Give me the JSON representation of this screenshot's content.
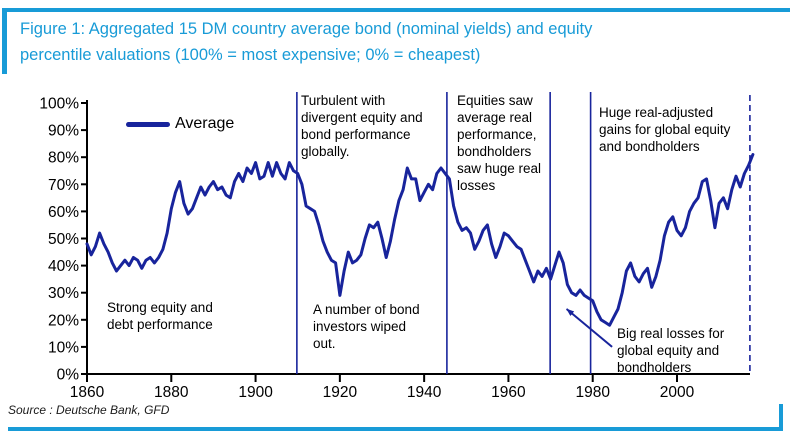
{
  "figure": {
    "title_line1": "Figure 1: Aggregated 15 DM country average bond (nominal yields) and equity",
    "title_line2": "percentile valuations (100% = most expensive; 0% = cheapest)",
    "source": "Source : Deutsche Bank, GFD",
    "accent_color": "#189bd7",
    "line_color": "#18249c"
  },
  "chart_data": {
    "type": "line",
    "title": "Figure 1: Aggregated 15 DM country average bond (nominal yields) and equity percentile valuations (100% = most expensive; 0% = cheapest)",
    "xlabel": "",
    "ylabel": "",
    "grid": false,
    "legend_label": "Average",
    "legend_position": "top-left-inside",
    "xlim": [
      1860,
      2018
    ],
    "ylim": [
      0,
      100
    ],
    "x_ticks": [
      1860,
      1880,
      1900,
      1920,
      1940,
      1960,
      1980,
      2000
    ],
    "y_tick_labels": [
      "0%",
      "10%",
      "20%",
      "30%",
      "40%",
      "50%",
      "60%",
      "70%",
      "80%",
      "90%",
      "100%"
    ],
    "dividers": [
      {
        "year": 1909.8,
        "style": "solid"
      },
      {
        "year": 1945.4,
        "style": "solid"
      },
      {
        "year": 1969.9,
        "style": "solid"
      },
      {
        "year": 1979.5,
        "style": "solid"
      },
      {
        "year": 2017.3,
        "style": "dashed"
      }
    ],
    "arrow": {
      "from_year": 1984.6,
      "from_value": 10,
      "to_year": 1973.8,
      "to_value": 24
    },
    "annotations": {
      "strong_equity": "Strong equity and\ndebt performance",
      "turbulent": "Turbulent with\ndivergent equity and\nbond performance\nglobally.",
      "bond_wipeout": "A number of bond\ninvestors wiped\nout.",
      "equities_avg": "Equities saw\naverage real\nperformance,\nbondholders\nsaw huge real\nlosses",
      "huge_gains": "Huge real-adjusted\ngains for global equity\nand bondholders",
      "big_losses": "Big real losses for\nglobal equity and\nbondholders"
    },
    "series": [
      {
        "name": "Average",
        "points": [
          [
            1860,
            48
          ],
          [
            1861,
            44
          ],
          [
            1862,
            47
          ],
          [
            1863,
            52
          ],
          [
            1864,
            48
          ],
          [
            1865,
            45
          ],
          [
            1866,
            41
          ],
          [
            1867,
            38
          ],
          [
            1868,
            40
          ],
          [
            1869,
            42
          ],
          [
            1870,
            40
          ],
          [
            1871,
            43
          ],
          [
            1872,
            42
          ],
          [
            1873,
            39
          ],
          [
            1874,
            42
          ],
          [
            1875,
            43
          ],
          [
            1876,
            41
          ],
          [
            1877,
            43
          ],
          [
            1878,
            46
          ],
          [
            1879,
            52
          ],
          [
            1880,
            61
          ],
          [
            1881,
            67
          ],
          [
            1882,
            71
          ],
          [
            1883,
            63
          ],
          [
            1884,
            59
          ],
          [
            1885,
            61
          ],
          [
            1886,
            65
          ],
          [
            1887,
            69
          ],
          [
            1888,
            66
          ],
          [
            1889,
            69
          ],
          [
            1890,
            71
          ],
          [
            1891,
            68
          ],
          [
            1892,
            69
          ],
          [
            1893,
            66
          ],
          [
            1894,
            65
          ],
          [
            1895,
            71
          ],
          [
            1896,
            74
          ],
          [
            1897,
            71
          ],
          [
            1898,
            76
          ],
          [
            1899,
            74
          ],
          [
            1900,
            78
          ],
          [
            1901,
            72
          ],
          [
            1902,
            73
          ],
          [
            1903,
            78
          ],
          [
            1904,
            73
          ],
          [
            1905,
            78
          ],
          [
            1906,
            74
          ],
          [
            1907,
            72
          ],
          [
            1908,
            78
          ],
          [
            1909,
            75
          ],
          [
            1910,
            74
          ],
          [
            1911,
            70
          ],
          [
            1912,
            62
          ],
          [
            1913,
            61
          ],
          [
            1914,
            60
          ],
          [
            1915,
            55
          ],
          [
            1916,
            49
          ],
          [
            1917,
            45
          ],
          [
            1918,
            42
          ],
          [
            1919,
            41
          ],
          [
            1920,
            29
          ],
          [
            1921,
            38
          ],
          [
            1922,
            45
          ],
          [
            1923,
            41
          ],
          [
            1924,
            42
          ],
          [
            1925,
            44
          ],
          [
            1926,
            50
          ],
          [
            1927,
            55
          ],
          [
            1928,
            54
          ],
          [
            1929,
            56
          ],
          [
            1930,
            50
          ],
          [
            1931,
            43
          ],
          [
            1932,
            49
          ],
          [
            1933,
            57
          ],
          [
            1934,
            64
          ],
          [
            1935,
            68
          ],
          [
            1936,
            76
          ],
          [
            1937,
            72
          ],
          [
            1938,
            72
          ],
          [
            1939,
            64
          ],
          [
            1940,
            67
          ],
          [
            1941,
            70
          ],
          [
            1942,
            68
          ],
          [
            1943,
            74
          ],
          [
            1944,
            76
          ],
          [
            1945,
            74
          ],
          [
            1946,
            72
          ],
          [
            1947,
            62
          ],
          [
            1948,
            56
          ],
          [
            1949,
            53
          ],
          [
            1950,
            54
          ],
          [
            1951,
            52
          ],
          [
            1952,
            46
          ],
          [
            1953,
            49
          ],
          [
            1954,
            53
          ],
          [
            1955,
            55
          ],
          [
            1956,
            48
          ],
          [
            1957,
            43
          ],
          [
            1958,
            47
          ],
          [
            1959,
            52
          ],
          [
            1960,
            51
          ],
          [
            1961,
            49
          ],
          [
            1962,
            47
          ],
          [
            1963,
            46
          ],
          [
            1964,
            42
          ],
          [
            1965,
            38
          ],
          [
            1966,
            34
          ],
          [
            1967,
            38
          ],
          [
            1968,
            36
          ],
          [
            1969,
            39
          ],
          [
            1970,
            35
          ],
          [
            1971,
            40
          ],
          [
            1972,
            45
          ],
          [
            1973,
            41
          ],
          [
            1974,
            33
          ],
          [
            1975,
            30
          ],
          [
            1976,
            29
          ],
          [
            1977,
            31
          ],
          [
            1978,
            29
          ],
          [
            1979,
            28
          ],
          [
            1980,
            27
          ],
          [
            1981,
            23
          ],
          [
            1982,
            20
          ],
          [
            1983,
            19
          ],
          [
            1984,
            18
          ],
          [
            1985,
            21
          ],
          [
            1986,
            24
          ],
          [
            1987,
            30
          ],
          [
            1988,
            38
          ],
          [
            1989,
            41
          ],
          [
            1990,
            36
          ],
          [
            1991,
            34
          ],
          [
            1992,
            37
          ],
          [
            1993,
            39
          ],
          [
            1994,
            32
          ],
          [
            1995,
            36
          ],
          [
            1996,
            42
          ],
          [
            1997,
            51
          ],
          [
            1998,
            56
          ],
          [
            1999,
            58
          ],
          [
            2000,
            53
          ],
          [
            2001,
            51
          ],
          [
            2002,
            54
          ],
          [
            2003,
            60
          ],
          [
            2004,
            63
          ],
          [
            2005,
            65
          ],
          [
            2006,
            71
          ],
          [
            2007,
            72
          ],
          [
            2008,
            64
          ],
          [
            2009,
            54
          ],
          [
            2010,
            63
          ],
          [
            2011,
            65
          ],
          [
            2012,
            61
          ],
          [
            2013,
            68
          ],
          [
            2014,
            73
          ],
          [
            2015,
            69
          ],
          [
            2016,
            74
          ],
          [
            2017,
            77
          ],
          [
            2018,
            81
          ]
        ]
      }
    ]
  }
}
